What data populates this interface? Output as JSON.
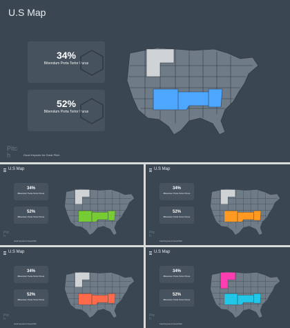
{
  "main": {
    "title": "U.S Map",
    "stats": [
      {
        "value": "34%",
        "label": "Bibendum Porta Tortor Purus"
      },
      {
        "value": "52%",
        "label": "Bibendum Porta Tortor Purus"
      }
    ],
    "pitch": "Pitc\nh",
    "tagline": "Good Keynote for Great Pitch",
    "highlight_color": "#4da6ff"
  },
  "thumbnails": [
    {
      "title": "U.S Map",
      "stats": [
        {
          "value": "34%",
          "label": "Bibendum Porta Tortor Purus"
        },
        {
          "value": "52%",
          "label": "Bibendum Porta Tortor Purus"
        }
      ],
      "pitch": "Pitc\nh",
      "tagline": "Good Keynote for Great Pitch",
      "highlight_color": "#77cc33"
    },
    {
      "title": "U.S Map",
      "stats": [
        {
          "value": "34%",
          "label": "Bibendum Porta Tortor Purus"
        },
        {
          "value": "52%",
          "label": "Bibendum Porta Tortor Purus"
        }
      ],
      "pitch": "Pitc\nh",
      "tagline": "Good Keynote for Great Pitch",
      "highlight_color": "#ff9922"
    },
    {
      "title": "U.S Map",
      "stats": [
        {
          "value": "34%",
          "label": "Bibendum Porta Tortor Purus"
        },
        {
          "value": "52%",
          "label": "Bibendum Porta Tortor Purus"
        }
      ],
      "pitch": "Pitc\nh",
      "tagline": "Good Keynote for Great Pitch",
      "highlight_color": "#ff6a4a"
    },
    {
      "title": "U.S Map",
      "stats": [
        {
          "value": "34%",
          "label": "Bibendum Porta Tortor Purus"
        },
        {
          "value": "52%",
          "label": "Bibendum Porta Tortor Purus"
        }
      ],
      "pitch": "Pitc\nh",
      "tagline": "Good Keynote for Great Pitch",
      "highlight_color": "#ff3db0",
      "highlight_color_2": "#22c7e8"
    }
  ],
  "map_gray": "#6f7b86",
  "map_stroke": "#2f3a43",
  "map_highlight_north": "#d0d3d6"
}
